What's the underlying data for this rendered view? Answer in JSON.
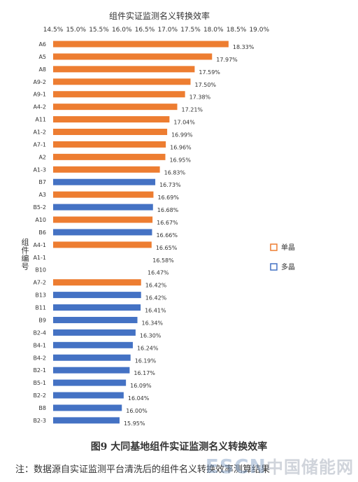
{
  "chart_data": {
    "type": "bar",
    "orientation": "horizontal",
    "title": "组件实证监测名义转换效率",
    "ylabel": "组件编号",
    "x_ticks": [
      "14.5%",
      "15.0%",
      "15.5%",
      "16.0%",
      "16.5%",
      "17.0%",
      "17.5%",
      "18.0%",
      "18.5%",
      "19.0%"
    ],
    "xlim": [
      14.5,
      19.2
    ],
    "categories": [
      "A6",
      "A5",
      "A8",
      "A9-2",
      "A9-1",
      "A4-2",
      "A11",
      "A1-2",
      "A7-1",
      "A2",
      "A1-3",
      "B7",
      "A3",
      "B5-2",
      "A10",
      "B6",
      "A4-1",
      "A1-1",
      "B10",
      "A7-2",
      "B13",
      "B11",
      "B9",
      "B2-4",
      "B4-1",
      "B4-2",
      "B2-1",
      "B5-1",
      "B2-2",
      "B8",
      "B2-3"
    ],
    "values": [
      18.33,
      17.97,
      17.59,
      17.5,
      17.38,
      17.21,
      17.04,
      16.99,
      16.96,
      16.95,
      16.83,
      16.73,
      16.69,
      16.68,
      16.67,
      16.66,
      16.65,
      16.58,
      16.47,
      16.42,
      16.42,
      16.41,
      16.34,
      16.3,
      16.24,
      16.19,
      16.17,
      16.09,
      16.04,
      16.0,
      15.95
    ],
    "value_labels": [
      "18.33%",
      "17.97%",
      "17.59%",
      "17.50%",
      "17.38%",
      "17.21%",
      "17.04%",
      "16.99%",
      "16.96%",
      "16.95%",
      "16.83%",
      "16.73%",
      "16.69%",
      "16.68%",
      "16.67%",
      "16.66%",
      "16.65%",
      "16.58%",
      "16.47%",
      "16.42%",
      "16.42%",
      "16.41%",
      "16.34%",
      "16.30%",
      "16.24%",
      "16.19%",
      "16.17%",
      "16.09%",
      "16.04%",
      "16.00%",
      "15.95%"
    ],
    "series_type": [
      "mono",
      "mono",
      "mono",
      "mono",
      "mono",
      "mono",
      "mono",
      "mono",
      "mono",
      "mono",
      "mono",
      "poly",
      "mono",
      "poly",
      "mono",
      "poly",
      "mono",
      "none",
      "none",
      "mono",
      "poly",
      "poly",
      "poly",
      "poly",
      "poly",
      "poly",
      "poly",
      "poly",
      "poly",
      "poly",
      "poly"
    ],
    "legend": [
      {
        "key": "mono",
        "name": "单晶",
        "color": "#ED7D31"
      },
      {
        "key": "poly",
        "name": "多晶",
        "color": "#4472C4"
      }
    ],
    "legend_placement": "right",
    "grid": false
  },
  "caption": "图9  大同基地组件实证监测名义转换效率",
  "note": "注：数据源自实证监测平台清洗后的组件名义转换效率测算结果",
  "watermark": {
    "latin": "ESCN",
    "cn": "中国储能网"
  }
}
